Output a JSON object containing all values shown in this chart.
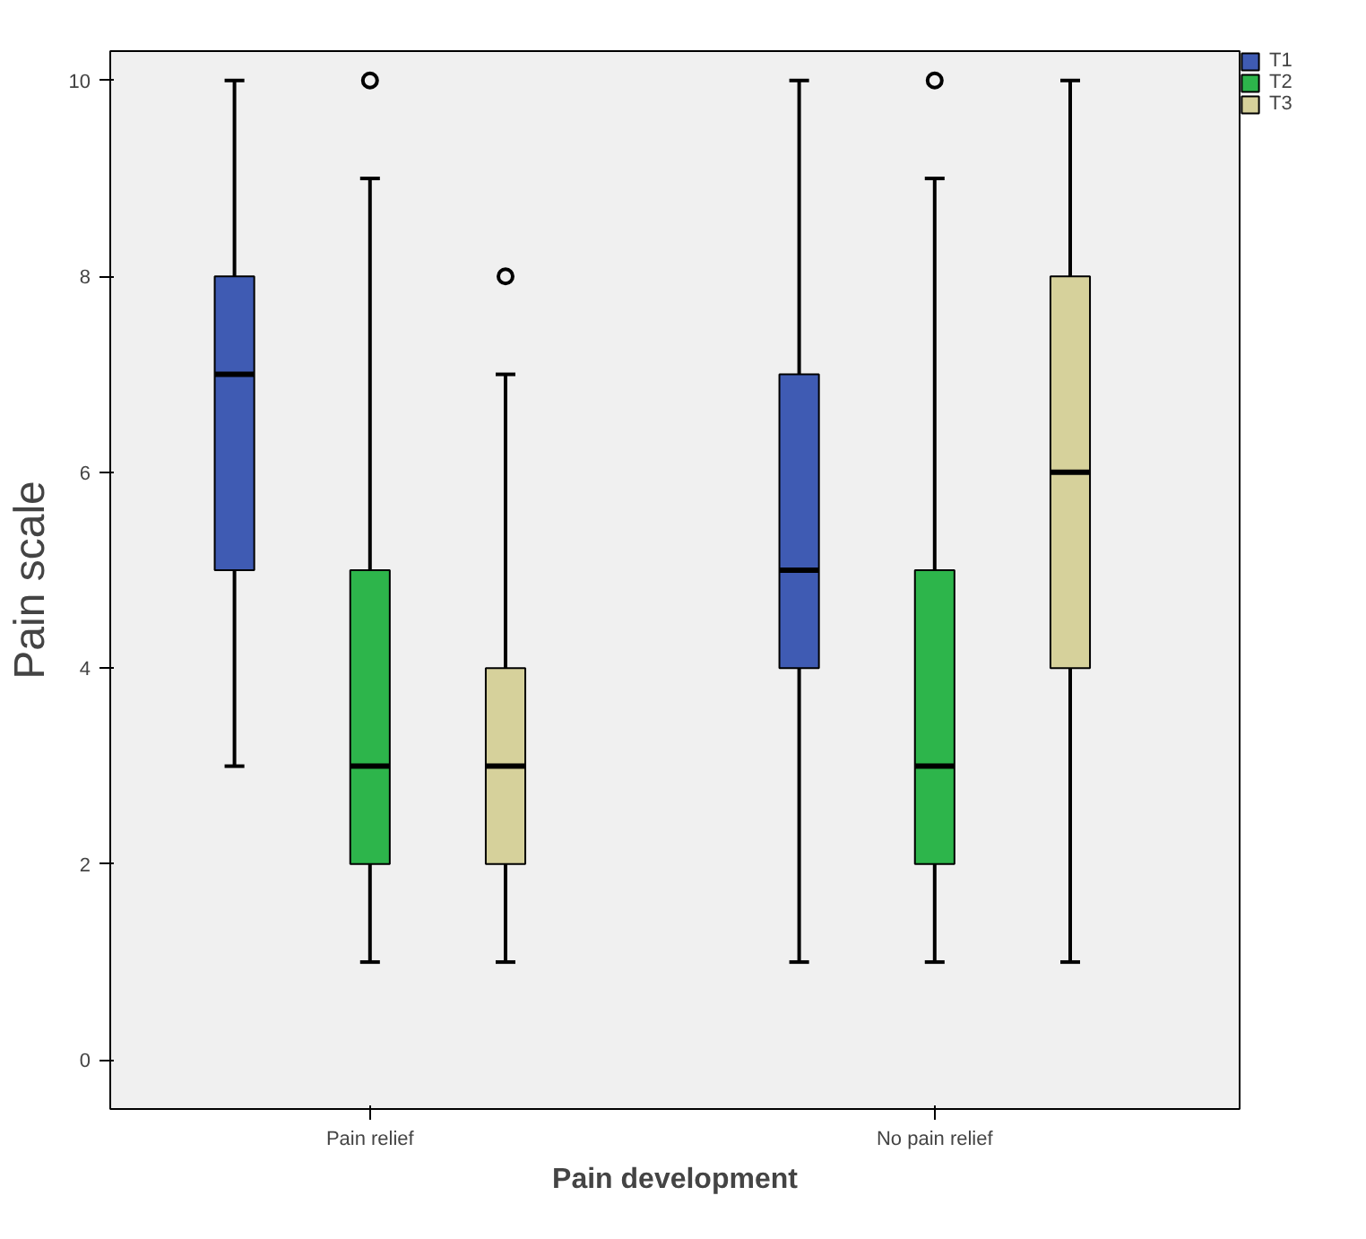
{
  "chart_data": {
    "type": "box",
    "xlabel": "Pain development",
    "ylabel": "Pain scale",
    "categories": [
      "Pain relief",
      "No pain relief"
    ],
    "ylim": [
      -0.5,
      10.3
    ],
    "yticks": [
      0,
      2,
      4,
      6,
      8,
      10
    ],
    "grid": false,
    "legend": "top right",
    "series": [
      {
        "name": "T1",
        "color": "#3f5bb3",
        "boxes": [
          {
            "low": 3,
            "q1": 5,
            "median": 7,
            "q3": 8,
            "high": 10
          },
          {
            "low": 1,
            "q1": 4,
            "median": 5,
            "q3": 7,
            "high": 10
          }
        ]
      },
      {
        "name": "T2",
        "color": "#2db54b",
        "boxes": [
          {
            "low": 1,
            "q1": 2,
            "median": 3,
            "q3": 5,
            "high": 9,
            "outliers": [
              10
            ]
          },
          {
            "low": 1,
            "q1": 2,
            "median": 3,
            "q3": 5,
            "high": 9,
            "outliers": [
              10
            ]
          }
        ]
      },
      {
        "name": "T3",
        "color": "#d6d19b",
        "boxes": [
          {
            "low": 1,
            "q1": 2,
            "median": 3,
            "q3": 4,
            "high": 7,
            "outliers": [
              8
            ]
          },
          {
            "low": 1,
            "q1": 4,
            "median": 6,
            "q3": 8,
            "high": 10
          }
        ]
      }
    ]
  }
}
